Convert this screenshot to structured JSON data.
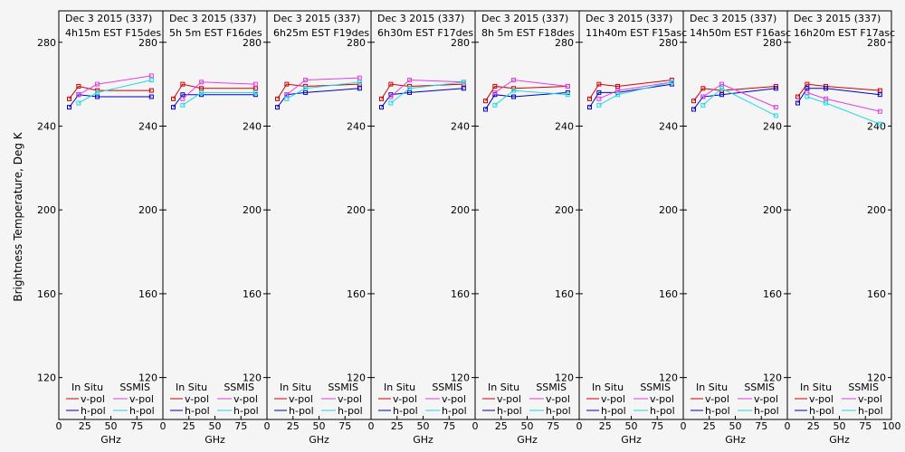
{
  "ylabel": "Brightness Temperature, Deg K",
  "xlabel": "GHz",
  "ylim": [
    100,
    295
  ],
  "xlim": [
    0,
    100
  ],
  "yticks": [
    120,
    160,
    200,
    240,
    280
  ],
  "xticks": [
    0,
    25,
    50,
    75,
    100
  ],
  "legend": {
    "in_situ": "In Situ",
    "ssmis": "SSMIS",
    "vpol": "v-pol",
    "hpol": "h-pol"
  },
  "colors": {
    "insitu_v": "#d00000",
    "insitu_h": "#0000c0",
    "ssmis_v": "#e040e0",
    "ssmis_h": "#20d8e8"
  },
  "chart_data": [
    {
      "type": "line",
      "title": "Dec 3 2015 (337)",
      "subtitle": "4h15m  EST  F15des",
      "series": [
        {
          "key": "insitu_v",
          "x": [
            10,
            19,
            37,
            89
          ],
          "values": [
            253,
            259,
            257,
            257
          ]
        },
        {
          "key": "insitu_h",
          "x": [
            10,
            19,
            37,
            89
          ],
          "values": [
            249,
            255,
            254,
            254
          ]
        },
        {
          "key": "ssmis_v",
          "x": [
            19,
            37,
            89
          ],
          "values": [
            255,
            260,
            264
          ]
        },
        {
          "key": "ssmis_h",
          "x": [
            19,
            37,
            89
          ],
          "values": [
            251,
            256,
            262
          ]
        }
      ]
    },
    {
      "type": "line",
      "title": "Dec 3 2015 (337)",
      "subtitle": "5h 5m  EST  F16des",
      "series": [
        {
          "key": "insitu_v",
          "x": [
            10,
            19,
            37,
            89
          ],
          "values": [
            253,
            260,
            258,
            258
          ]
        },
        {
          "key": "insitu_h",
          "x": [
            10,
            19,
            37,
            89
          ],
          "values": [
            249,
            255,
            255,
            255
          ]
        },
        {
          "key": "ssmis_v",
          "x": [
            19,
            37,
            89
          ],
          "values": [
            253,
            261,
            260
          ]
        },
        {
          "key": "ssmis_h",
          "x": [
            19,
            37,
            89
          ],
          "values": [
            250,
            256,
            256
          ]
        }
      ]
    },
    {
      "type": "line",
      "title": "Dec 3 2015 (337)",
      "subtitle": "6h25m  EST  F19des",
      "series": [
        {
          "key": "insitu_v",
          "x": [
            10,
            19,
            37,
            89
          ],
          "values": [
            253,
            260,
            259,
            260
          ]
        },
        {
          "key": "insitu_h",
          "x": [
            10,
            19,
            37,
            89
          ],
          "values": [
            249,
            255,
            256,
            258
          ]
        },
        {
          "key": "ssmis_v",
          "x": [
            19,
            37,
            89
          ],
          "values": [
            255,
            262,
            263
          ]
        },
        {
          "key": "ssmis_h",
          "x": [
            19,
            37,
            89
          ],
          "values": [
            253,
            258,
            261
          ]
        }
      ]
    },
    {
      "type": "line",
      "title": "Dec 3 2015 (337)",
      "subtitle": "6h30m  EST  F17des",
      "series": [
        {
          "key": "insitu_v",
          "x": [
            10,
            19,
            37,
            89
          ],
          "values": [
            253,
            260,
            259,
            260
          ]
        },
        {
          "key": "insitu_h",
          "x": [
            10,
            19,
            37,
            89
          ],
          "values": [
            249,
            255,
            256,
            258
          ]
        },
        {
          "key": "ssmis_v",
          "x": [
            19,
            37,
            89
          ],
          "values": [
            254,
            262,
            261
          ]
        },
        {
          "key": "ssmis_h",
          "x": [
            19,
            37,
            89
          ],
          "values": [
            251,
            258,
            261
          ]
        }
      ]
    },
    {
      "type": "line",
      "title": "Dec 3 2015 (337)",
      "subtitle": "8h 5m  EST  F18des",
      "series": [
        {
          "key": "insitu_v",
          "x": [
            10,
            19,
            37,
            89
          ],
          "values": [
            252,
            259,
            258,
            259
          ]
        },
        {
          "key": "insitu_h",
          "x": [
            10,
            19,
            37,
            89
          ],
          "values": [
            248,
            255,
            254,
            256
          ]
        },
        {
          "key": "ssmis_v",
          "x": [
            19,
            37,
            89
          ],
          "values": [
            256,
            262,
            259
          ]
        },
        {
          "key": "ssmis_h",
          "x": [
            19,
            37,
            89
          ],
          "values": [
            250,
            257,
            255
          ]
        }
      ]
    },
    {
      "type": "line",
      "title": "Dec 3 2015 (337)",
      "subtitle": "11h40m  EST  F15asc",
      "series": [
        {
          "key": "insitu_v",
          "x": [
            10,
            19,
            37,
            89
          ],
          "values": [
            253,
            260,
            259,
            262
          ]
        },
        {
          "key": "insitu_h",
          "x": [
            10,
            19,
            37,
            89
          ],
          "values": [
            249,
            256,
            256,
            260
          ]
        },
        {
          "key": "ssmis_v",
          "x": [
            19,
            37,
            89
          ],
          "values": [
            253,
            257,
            261
          ]
        },
        {
          "key": "ssmis_h",
          "x": [
            19,
            37,
            89
          ],
          "values": [
            250,
            255,
            261
          ]
        }
      ]
    },
    {
      "type": "line",
      "title": "Dec 3 2015 (337)",
      "subtitle": "14h50m  EST  F16asc",
      "series": [
        {
          "key": "insitu_v",
          "x": [
            10,
            19,
            37,
            89
          ],
          "values": [
            252,
            258,
            257,
            259
          ]
        },
        {
          "key": "insitu_h",
          "x": [
            10,
            19,
            37,
            89
          ],
          "values": [
            248,
            254,
            255,
            258
          ]
        },
        {
          "key": "ssmis_v",
          "x": [
            19,
            37,
            89
          ],
          "values": [
            254,
            260,
            249
          ]
        },
        {
          "key": "ssmis_h",
          "x": [
            19,
            37,
            89
          ],
          "values": [
            250,
            258,
            245
          ]
        }
      ]
    },
    {
      "type": "line",
      "title": "Dec 3 2015 (337)",
      "subtitle": "16h20m  EST  F17asc",
      "series": [
        {
          "key": "insitu_v",
          "x": [
            10,
            19,
            37,
            89
          ],
          "values": [
            254,
            260,
            259,
            257
          ]
        },
        {
          "key": "insitu_h",
          "x": [
            10,
            19,
            37,
            89
          ],
          "values": [
            251,
            258,
            258,
            255
          ]
        },
        {
          "key": "ssmis_v",
          "x": [
            19,
            37,
            89
          ],
          "values": [
            256,
            253,
            247
          ]
        },
        {
          "key": "ssmis_h",
          "x": [
            19,
            37,
            89
          ],
          "values": [
            254,
            251,
            241
          ]
        }
      ]
    }
  ]
}
